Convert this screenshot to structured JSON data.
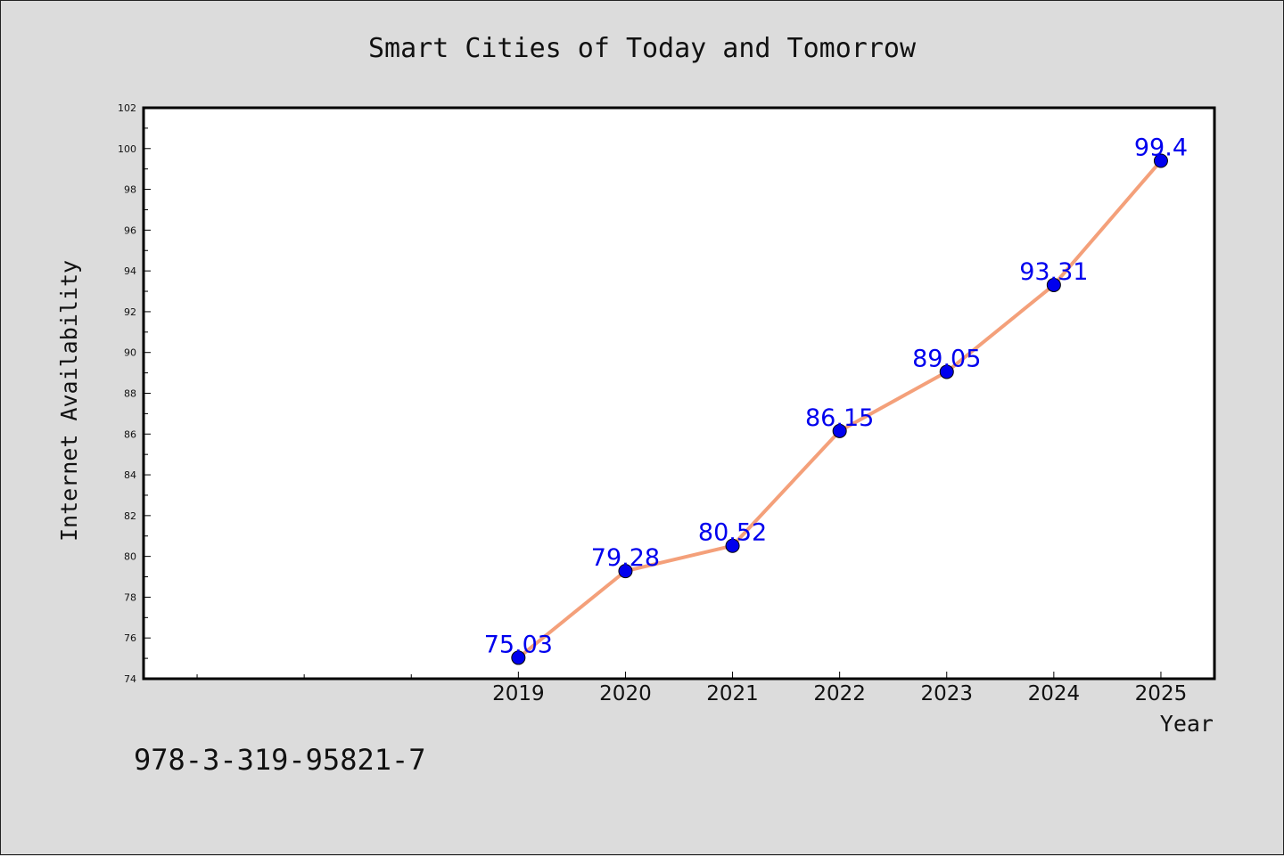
{
  "chart_data": {
    "type": "line",
    "title": "Smart Cities of Today and Tomorrow",
    "xlabel": "Year",
    "ylabel": "Internet Availability",
    "categories": [
      "2019",
      "2020",
      "2021",
      "2022",
      "2023",
      "2024",
      "2025"
    ],
    "series": [
      {
        "values": [
          75.03,
          79.28,
          80.52,
          86.15,
          89.05,
          93.31,
          99.4
        ],
        "data_labels": [
          "75.03",
          "79.28",
          "80.52",
          "86.15",
          "89.05",
          "93.31",
          "99.4"
        ],
        "line_color": "#f4a07a",
        "marker_color": "#0000ee"
      }
    ],
    "ylim": [
      74,
      102
    ],
    "xlim": [
      2015.5,
      2025.5
    ],
    "yticks": [
      "74",
      "76",
      "78",
      "80",
      "82",
      "84",
      "86",
      "88",
      "90",
      "92",
      "94",
      "96",
      "98",
      "100",
      "102"
    ],
    "grid": false,
    "legend": "none"
  },
  "footer": {
    "isbn": "978-3-319-95821-7"
  },
  "colors": {
    "background": "#dcdcdc",
    "plot_background": "#ffffff",
    "label_color": "#0000ee"
  }
}
